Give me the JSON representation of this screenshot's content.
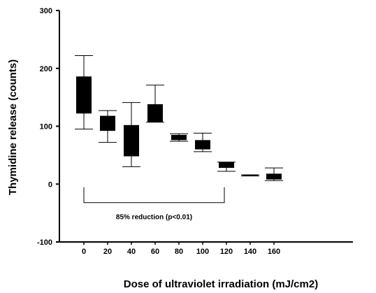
{
  "chart_data": {
    "type": "boxplot",
    "title": "",
    "xlabel": "Dose of ultraviolet irradiation (mJ/cm2)",
    "ylabel": "Thymidine release (counts)",
    "ylim": [
      -100,
      300
    ],
    "yticks": [
      -100,
      0,
      100,
      200,
      300
    ],
    "categories": [
      "0",
      "20",
      "40",
      "60",
      "80",
      "100",
      "120",
      "140",
      "160"
    ],
    "boxes": [
      {
        "dose": "0",
        "whisker_low": 95,
        "q1": 122,
        "q3": 186,
        "whisker_high": 222
      },
      {
        "dose": "20",
        "whisker_low": 72,
        "q1": 92,
        "q3": 118,
        "whisker_high": 127
      },
      {
        "dose": "40",
        "whisker_low": 30,
        "q1": 48,
        "q3": 102,
        "whisker_high": 141
      },
      {
        "dose": "60",
        "whisker_low": 107,
        "q1": 107,
        "q3": 138,
        "whisker_high": 171
      },
      {
        "dose": "80",
        "whisker_low": 74,
        "q1": 76,
        "q3": 85,
        "whisker_high": 87
      },
      {
        "dose": "100",
        "whisker_low": 56,
        "q1": 60,
        "q3": 76,
        "whisker_high": 88
      },
      {
        "dose": "120",
        "whisker_low": 22,
        "q1": 28,
        "q3": 38,
        "whisker_high": 38
      },
      {
        "dose": "140",
        "whisker_low": 14,
        "q1": 14,
        "q3": 16,
        "whisker_high": 16
      },
      {
        "dose": "160",
        "whisker_low": 6,
        "q1": 8,
        "q3": 18,
        "whisker_high": 28
      }
    ],
    "annotation": {
      "text": "85% reduction (p<0.01)",
      "from": "0",
      "to": "120",
      "level": -32
    },
    "grid": false,
    "legend": "none",
    "colors": {
      "box": "#000000",
      "line": "#000000"
    }
  }
}
